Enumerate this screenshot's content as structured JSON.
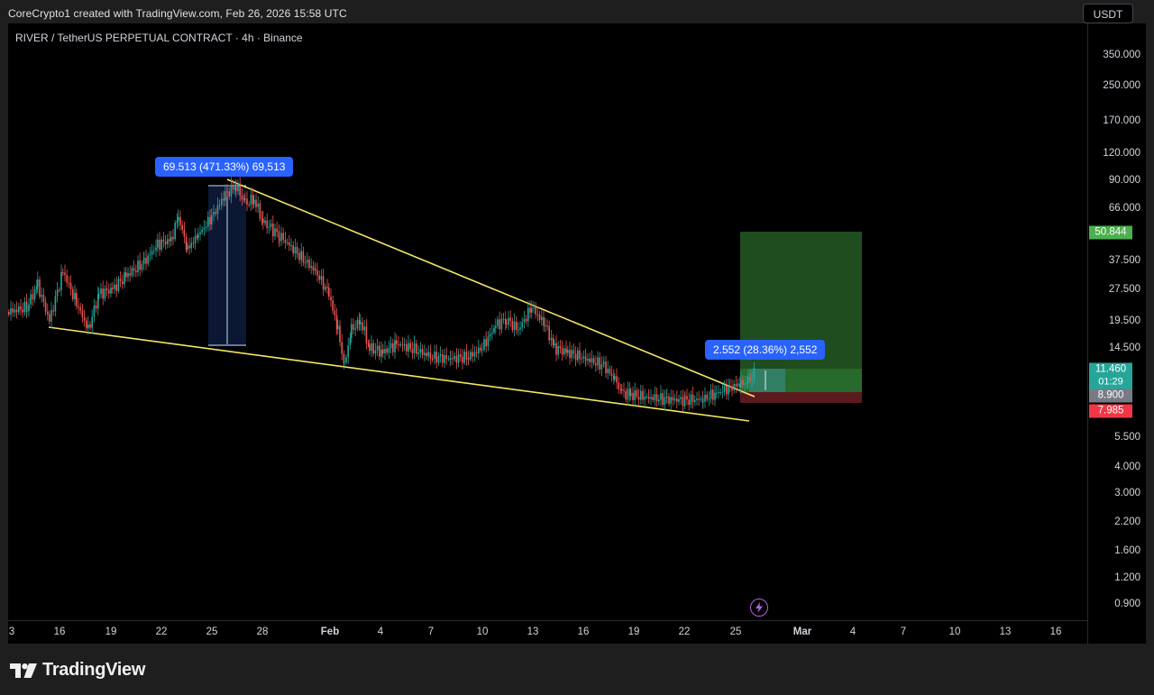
{
  "caption": "CoreCrypto1 created with TradingView.com, Feb 26, 2026 15:58 UTC",
  "symbol_title": "RIVER / TetherUS PERPETUAL CONTRACT · 4h · Binance",
  "currency_button": "USDT",
  "price_scale": {
    "ticks": [
      "350.000",
      "250.000",
      "170.000",
      "120.000",
      "90.000",
      "66.000",
      "37.500",
      "27.500",
      "19.500",
      "14.500",
      "5.500",
      "4.000",
      "3.000",
      "2.200",
      "1.600",
      "1.200",
      "0.900"
    ],
    "tags": {
      "target": {
        "text": "50.844",
        "color": "#4caf50"
      },
      "last": {
        "text": "11.460",
        "color": "#26a69a"
      },
      "countdown": {
        "text": "01:29",
        "color": "#26a69a"
      },
      "entry": {
        "text": "8.900",
        "color": "#787b86"
      },
      "stop": {
        "text": "7.985",
        "color": "#f23645"
      }
    }
  },
  "time_scale": {
    "labels": [
      "3",
      "16",
      "19",
      "22",
      "25",
      "28",
      "Feb",
      "4",
      "7",
      "10",
      "13",
      "16",
      "19",
      "22",
      "25",
      "Mar",
      "4",
      "7",
      "10",
      "13",
      "16"
    ]
  },
  "measurements": {
    "big": "69.513 (471.33%) 69,513",
    "small": "2.552 (28.36%) 2,552"
  },
  "brand": {
    "name": "TradingView"
  },
  "icons": {
    "alert": "bolt-icon",
    "logo": "tradingview-logo-icon"
  },
  "colors": {
    "background": "#000000",
    "trendline": "#f5e663",
    "candle_up": "#26a69a",
    "candle_down": "#ef5350",
    "measure": "#2962ff",
    "profit_zone": "#1f4d1f",
    "loss_zone": "#5c1a1f"
  }
}
